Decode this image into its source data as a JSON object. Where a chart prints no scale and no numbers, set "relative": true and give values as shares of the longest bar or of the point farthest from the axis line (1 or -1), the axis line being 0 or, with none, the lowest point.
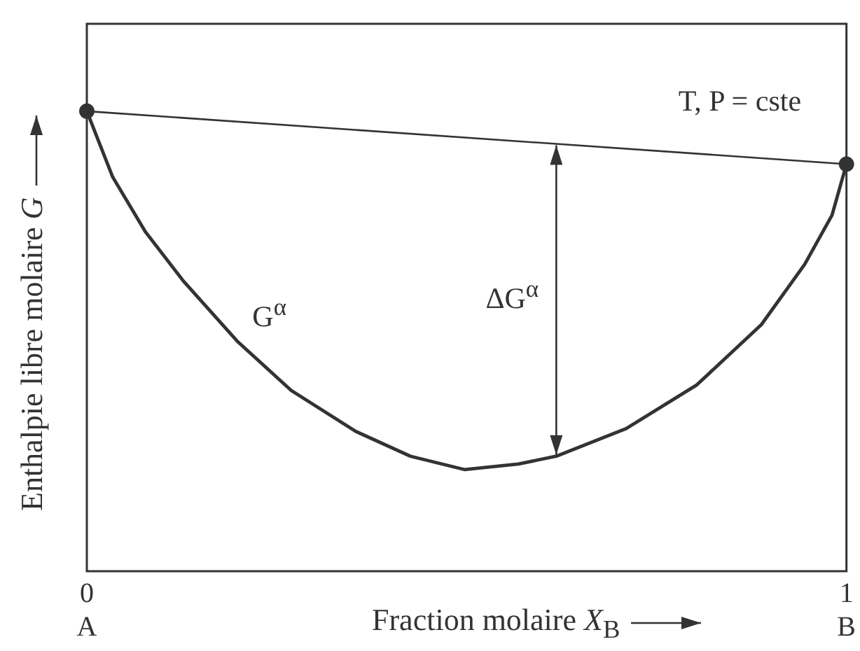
{
  "chart_data": {
    "type": "line",
    "relative": true,
    "xlabel": "Fraction molaire  X$_{B}$",
    "ylabel": "Enthalpie libre molaire  G",
    "xlim": [
      0,
      1
    ],
    "xticks": [
      {
        "value": 0,
        "label": "0\nA"
      },
      {
        "value": 1,
        "label": "1\nB"
      }
    ],
    "grid": false,
    "line_style": "solid",
    "series": [
      {
        "color": "#333333",
        "marker": "circle",
        "x": [
          0,
          1
        ],
        "values": [
          1,
          0.885
        ]
      },
      {
        "color": "#333333",
        "marker": "none",
        "x": [
          0,
          0.034,
          0.077,
          0.127,
          0.198,
          0.269,
          0.354,
          0.426,
          0.497,
          0.568,
          0.618,
          0.71,
          0.803,
          0.888,
          0.945,
          0.981,
          1
        ],
        "values": [
          1,
          0.857,
          0.738,
          0.631,
          0.5,
          0.393,
          0.304,
          0.25,
          0.221,
          0.233,
          0.25,
          0.31,
          0.405,
          0.536,
          0.667,
          0.774,
          0.885
        ]
      }
    ],
    "annotations": [
      "T, P = cste",
      "G$^{α}$",
      "ΔG$^{α}$"
    ]
  }
}
